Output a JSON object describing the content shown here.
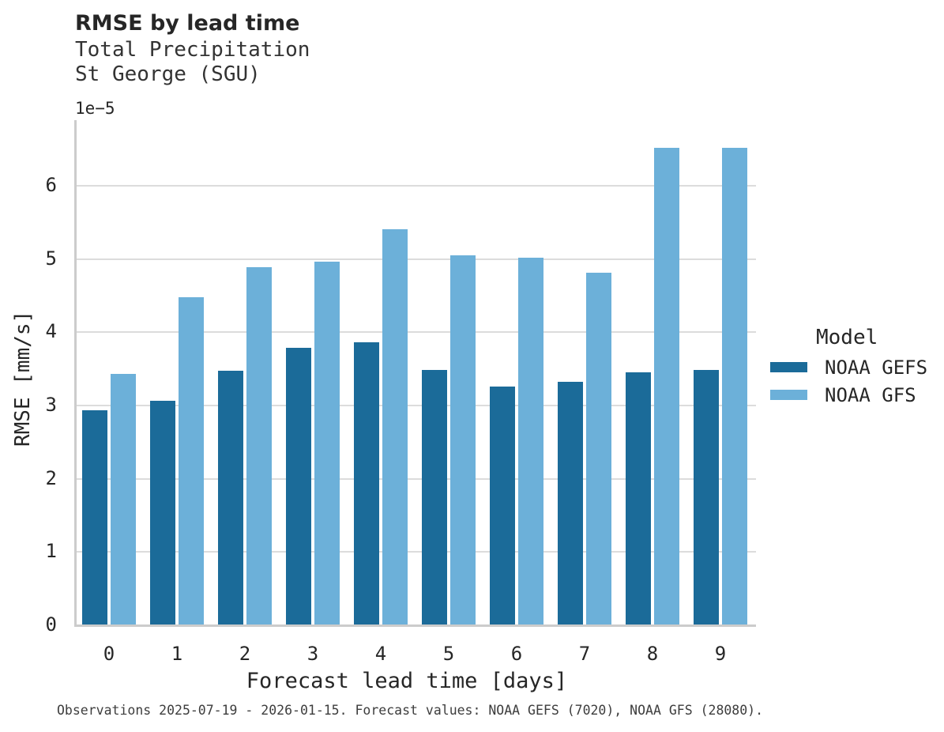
{
  "chart_data": {
    "type": "bar",
    "title": "RMSE by lead time",
    "subtitle": [
      "Total Precipitation",
      "St George (SGU)"
    ],
    "xlabel": "Forecast lead time [days]",
    "ylabel": "RMSE [mm/s]",
    "y_offset_text": "1e−5",
    "categories": [
      "0",
      "1",
      "2",
      "3",
      "4",
      "5",
      "6",
      "7",
      "8",
      "9"
    ],
    "series": [
      {
        "name": "NOAA GEFS",
        "color": "#1b6b99",
        "values": [
          2.92,
          3.05,
          3.46,
          3.78,
          3.85,
          3.47,
          3.25,
          3.31,
          3.44,
          3.47
        ]
      },
      {
        "name": "NOAA GFS",
        "color": "#6cb0d9",
        "values": [
          3.42,
          4.47,
          4.88,
          4.95,
          5.39,
          5.04,
          5.01,
          4.8,
          6.51,
          6.5
        ]
      }
    ],
    "values_scale_factor": "1e-5",
    "ylim": [
      0,
      6.89
    ],
    "yticks": [
      0,
      1,
      2,
      3,
      4,
      5,
      6
    ],
    "grid": "horizontal",
    "legend_title": "Model",
    "legend_position": "right"
  },
  "caption": "Observations 2025-07-19 - 2026-01-15. Forecast values: NOAA GEFS (7020), NOAA GFS (28080).",
  "colors": {
    "background": "#ffffff",
    "gridline": "#dcdcdc",
    "spine": "#cccccc",
    "text": "#262626",
    "caption_text": "#3d3d3d",
    "series_dark": "#1b6b99",
    "series_light": "#6cb0d9"
  }
}
